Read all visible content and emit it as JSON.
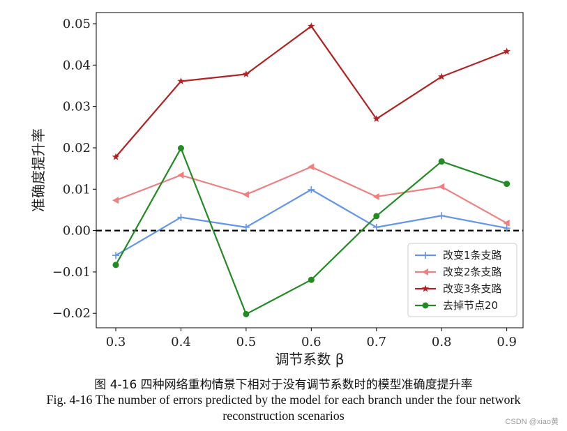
{
  "chart_data": {
    "type": "line",
    "xlabel": "调节系数 β",
    "ylabel": "准确度提升率",
    "x": [
      0.3,
      0.4,
      0.5,
      0.6,
      0.7,
      0.8,
      0.9
    ],
    "x_tick_labels": [
      "0.3",
      "0.4",
      "0.5",
      "0.6",
      "0.7",
      "0.8",
      "0.9"
    ],
    "y_ticks": [
      -0.02,
      -0.01,
      0.0,
      0.01,
      0.02,
      0.03,
      0.04,
      0.05
    ],
    "y_tick_labels": [
      "−0.02",
      "−0.01",
      "0.00",
      "0.01",
      "0.02",
      "0.03",
      "0.04",
      "0.05"
    ],
    "xlim": [
      0.27,
      0.925
    ],
    "ylim": [
      -0.0235,
      0.0527
    ],
    "grid": false,
    "reference_line": {
      "y": 0.0,
      "style": "dashed",
      "color": "#000000"
    },
    "legend_position": "lower-right",
    "series": [
      {
        "name": "改变1条支路",
        "color": "#6495ED",
        "marker": "plus",
        "values": [
          -0.006,
          0.0032,
          0.0008,
          0.0099,
          0.0008,
          0.0036,
          0.0006
        ]
      },
      {
        "name": "改变2条支路",
        "color": "#F08080",
        "marker": "triangle-left",
        "values": [
          0.0073,
          0.0134,
          0.0087,
          0.0154,
          0.0082,
          0.0106,
          0.0018
        ]
      },
      {
        "name": "改变3条支路",
        "color": "#B22222",
        "marker": "star",
        "values": [
          0.0178,
          0.0361,
          0.0378,
          0.0494,
          0.027,
          0.0372,
          0.0433
        ]
      },
      {
        "name": "去掉节点20",
        "color": "#228B22",
        "marker": "circle",
        "values": [
          -0.0083,
          0.0199,
          -0.0202,
          -0.0119,
          0.0035,
          0.0167,
          0.0113
        ]
      }
    ]
  },
  "caption": {
    "zh": "图 4-16  四种网络重构情景下相对于没有调节系数时的模型准确度提升率",
    "en_line1": "Fig. 4-16 The number of errors predicted by the model for each branch under the four network",
    "en_line2": "reconstruction scenarios"
  },
  "watermark": "CSDN @xiao黄"
}
